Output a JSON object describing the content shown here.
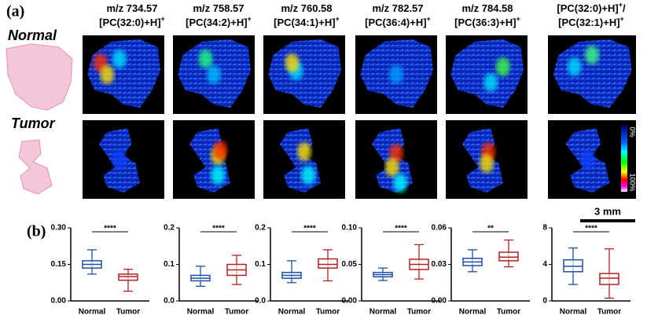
{
  "panel_a": {
    "label": "(a)",
    "columns": [
      {
        "lines": [
          [
            {
              "t": "m/z 734.57"
            }
          ],
          [
            {
              "t": "[PC(32:0)+H]"
            },
            {
              "sup": "+"
            }
          ]
        ]
      },
      {
        "lines": [
          [
            {
              "t": "m/z 758.57"
            }
          ],
          [
            {
              "t": "[PC(34:2)+H]"
            },
            {
              "sup": "+"
            }
          ]
        ]
      },
      {
        "lines": [
          [
            {
              "t": "m/z 760.58"
            }
          ],
          [
            {
              "t": "[PC(34:1)+H]"
            },
            {
              "sup": "+"
            }
          ]
        ]
      },
      {
        "lines": [
          [
            {
              "t": "m/z 782.57"
            }
          ],
          [
            {
              "t": "[PC(36:4)+H]"
            },
            {
              "sup": "+"
            }
          ]
        ]
      },
      {
        "lines": [
          [
            {
              "t": "m/z 784.58"
            }
          ],
          [
            {
              "t": "[PC(36:3)+H]"
            },
            {
              "sup": "+"
            }
          ]
        ]
      },
      {
        "lines": [
          [
            {
              "t": "[PC(32:0)+H]"
            },
            {
              "sup": "+"
            },
            {
              "t": "/"
            }
          ],
          [
            {
              "t": "[PC(32:1)+H]"
            },
            {
              "sup": "+"
            }
          ]
        ]
      }
    ],
    "rows": [
      "Normal",
      "Tumor"
    ],
    "colorbar": {
      "top": "0%",
      "bottom": "100%"
    },
    "scale_bar": "3 mm"
  },
  "panel_b": {
    "label": "(b)"
  },
  "chart_data": [
    {
      "type": "box",
      "annotation": "****",
      "ylim": [
        0,
        0.3
      ],
      "yticks": [
        {
          "value": 0,
          "label": "0.00"
        },
        0.15,
        {
          "value": 0.3,
          "label": "0.30"
        }
      ],
      "series": [
        {
          "name": "Normal",
          "color": "#1f4fa8",
          "min": 0.11,
          "q1": 0.135,
          "median": 0.15,
          "q3": 0.165,
          "max": 0.21
        },
        {
          "name": "Tumor",
          "color": "#b22222",
          "min": 0.04,
          "q1": 0.085,
          "median": 0.1,
          "q3": 0.11,
          "max": 0.13
        }
      ]
    },
    {
      "type": "box",
      "annotation": "****",
      "ylim": [
        0,
        0.2
      ],
      "yticks": [
        {
          "value": 0,
          "label": "0.0"
        },
        0.1,
        0.2
      ],
      "series": [
        {
          "name": "Normal",
          "color": "#1f4fa8",
          "min": 0.04,
          "q1": 0.055,
          "median": 0.062,
          "q3": 0.07,
          "max": 0.095
        },
        {
          "name": "Tumor",
          "color": "#b22222",
          "min": 0.045,
          "q1": 0.07,
          "median": 0.085,
          "q3": 0.1,
          "max": 0.125
        }
      ]
    },
    {
      "type": "box",
      "annotation": "****",
      "ylim": [
        0,
        0.2
      ],
      "yticks": [
        {
          "value": 0,
          "label": "0.0"
        },
        0.1,
        0.2
      ],
      "series": [
        {
          "name": "Normal",
          "color": "#1f4fa8",
          "min": 0.05,
          "q1": 0.062,
          "median": 0.07,
          "q3": 0.078,
          "max": 0.11
        },
        {
          "name": "Tumor",
          "color": "#b22222",
          "min": 0.055,
          "q1": 0.09,
          "median": 0.1,
          "q3": 0.115,
          "max": 0.14
        }
      ]
    },
    {
      "type": "box",
      "annotation": "****",
      "ylim": [
        0,
        0.1
      ],
      "yticks": [
        {
          "value": 0,
          "label": "0.00"
        },
        0.05,
        {
          "value": 0.1,
          "label": "0.10"
        }
      ],
      "series": [
        {
          "name": "Normal",
          "color": "#1f4fa8",
          "min": 0.028,
          "q1": 0.033,
          "median": 0.036,
          "q3": 0.039,
          "max": 0.045
        },
        {
          "name": "Tumor",
          "color": "#b22222",
          "min": 0.03,
          "q1": 0.043,
          "median": 0.05,
          "q3": 0.057,
          "max": 0.077
        }
      ]
    },
    {
      "type": "box",
      "annotation": "**",
      "ylim": [
        0,
        0.06
      ],
      "yticks": [
        {
          "value": 0,
          "label": "0.00"
        },
        0.03,
        0.06
      ],
      "series": [
        {
          "name": "Normal",
          "color": "#1f4fa8",
          "min": 0.024,
          "q1": 0.029,
          "median": 0.032,
          "q3": 0.035,
          "max": 0.042
        },
        {
          "name": "Tumor",
          "color": "#b22222",
          "min": 0.028,
          "q1": 0.033,
          "median": 0.036,
          "q3": 0.04,
          "max": 0.05
        }
      ]
    },
    {
      "type": "box",
      "annotation": "****",
      "ylim": [
        0,
        8
      ],
      "yticks": [
        0,
        4,
        8
      ],
      "series": [
        {
          "name": "Normal",
          "color": "#1f4fa8",
          "min": 1.8,
          "q1": 3.2,
          "median": 3.8,
          "q3": 4.5,
          "max": 5.8
        },
        {
          "name": "Tumor",
          "color": "#b22222",
          "min": 0.3,
          "q1": 1.8,
          "median": 2.5,
          "q3": 3.0,
          "max": 5.7
        }
      ]
    }
  ]
}
